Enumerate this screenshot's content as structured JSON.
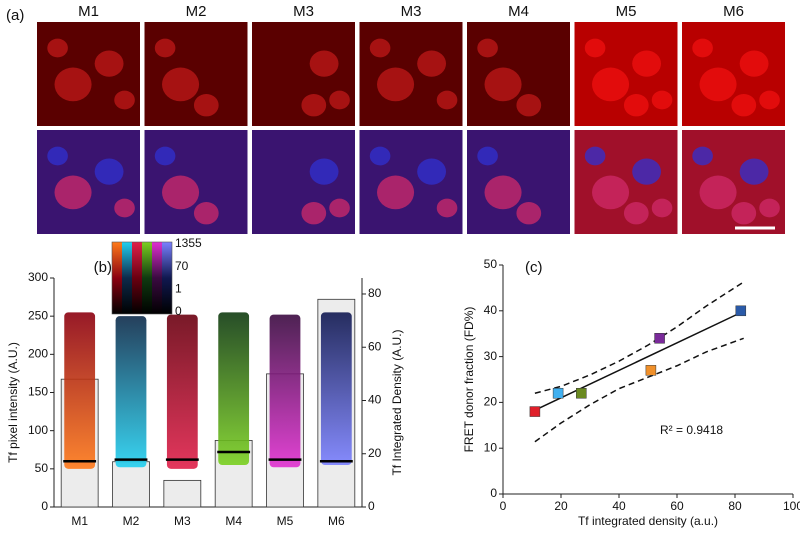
{
  "panel_a": {
    "label": "(a)",
    "columns": [
      "M1",
      "M2",
      "M3",
      "M3",
      "M4",
      "M5",
      "M6"
    ]
  },
  "chart_data": [
    {
      "type": "strip",
      "panel_label": "(b)",
      "ylabel": "Tf pixel intensity (A.U.)",
      "y2label": "Tf Integrated Density (A.U.)",
      "categories": [
        "M1",
        "M2",
        "M3",
        "M4",
        "M5",
        "M6"
      ],
      "ylim": [
        0,
        300
      ],
      "yticks": [
        0,
        50,
        100,
        150,
        200,
        250,
        300
      ],
      "y2lim": [
        0,
        86
      ],
      "y2ticks": [
        0,
        20,
        40,
        60,
        80
      ],
      "point_ranges": [
        [
          50,
          255
        ],
        [
          52,
          250
        ],
        [
          50,
          252
        ],
        [
          55,
          255
        ],
        [
          52,
          252
        ],
        [
          55,
          255
        ]
      ],
      "point_colors": [
        [
          "#8b0010",
          "#ff7a1a"
        ],
        [
          "#0d2a4a",
          "#22d0f0"
        ],
        [
          "#6a0010",
          "#e0204a"
        ],
        [
          "#0f3a10",
          "#7ad020"
        ],
        [
          "#3a0a40",
          "#e030d0"
        ],
        [
          "#101850",
          "#7a80ff"
        ]
      ],
      "medians": [
        60,
        62,
        62,
        72,
        62,
        60
      ],
      "bars": {
        "axis": "y2",
        "values": [
          48,
          17,
          10,
          25,
          50,
          78
        ]
      },
      "colorbar": {
        "labels": [
          "1355",
          "70",
          "1",
          "0"
        ]
      }
    },
    {
      "type": "scatter",
      "panel_label": "(c)",
      "xlabel": "Tf integrated density (a.u.)",
      "ylabel": "FRET donor fraction (FD%)",
      "xlim": [
        0,
        100
      ],
      "xticks": [
        0,
        20,
        40,
        60,
        80,
        100
      ],
      "ylim": [
        0,
        50
      ],
      "yticks": [
        0,
        10,
        20,
        30,
        40,
        50
      ],
      "x": [
        11,
        19,
        27,
        51,
        54,
        82
      ],
      "y": [
        18,
        22,
        22,
        27,
        34,
        40
      ],
      "colors": [
        "#e0202a",
        "#40b0f0",
        "#6a8a20",
        "#f0902a",
        "#7a2a9a",
        "#2a5aa8"
      ],
      "fit": {
        "x": [
          11,
          83
        ],
        "y": [
          18.3,
          39.9
        ]
      },
      "band_x": [
        11,
        20,
        30,
        40,
        50,
        60,
        70,
        83
      ],
      "band_upper": [
        22,
        23.5,
        26,
        29,
        32.5,
        36.5,
        41,
        46.3
      ],
      "band_lower": [
        11.4,
        15.5,
        19.5,
        23,
        25.5,
        28,
        31,
        34
      ],
      "annotation": "R² = 0.9418"
    }
  ]
}
